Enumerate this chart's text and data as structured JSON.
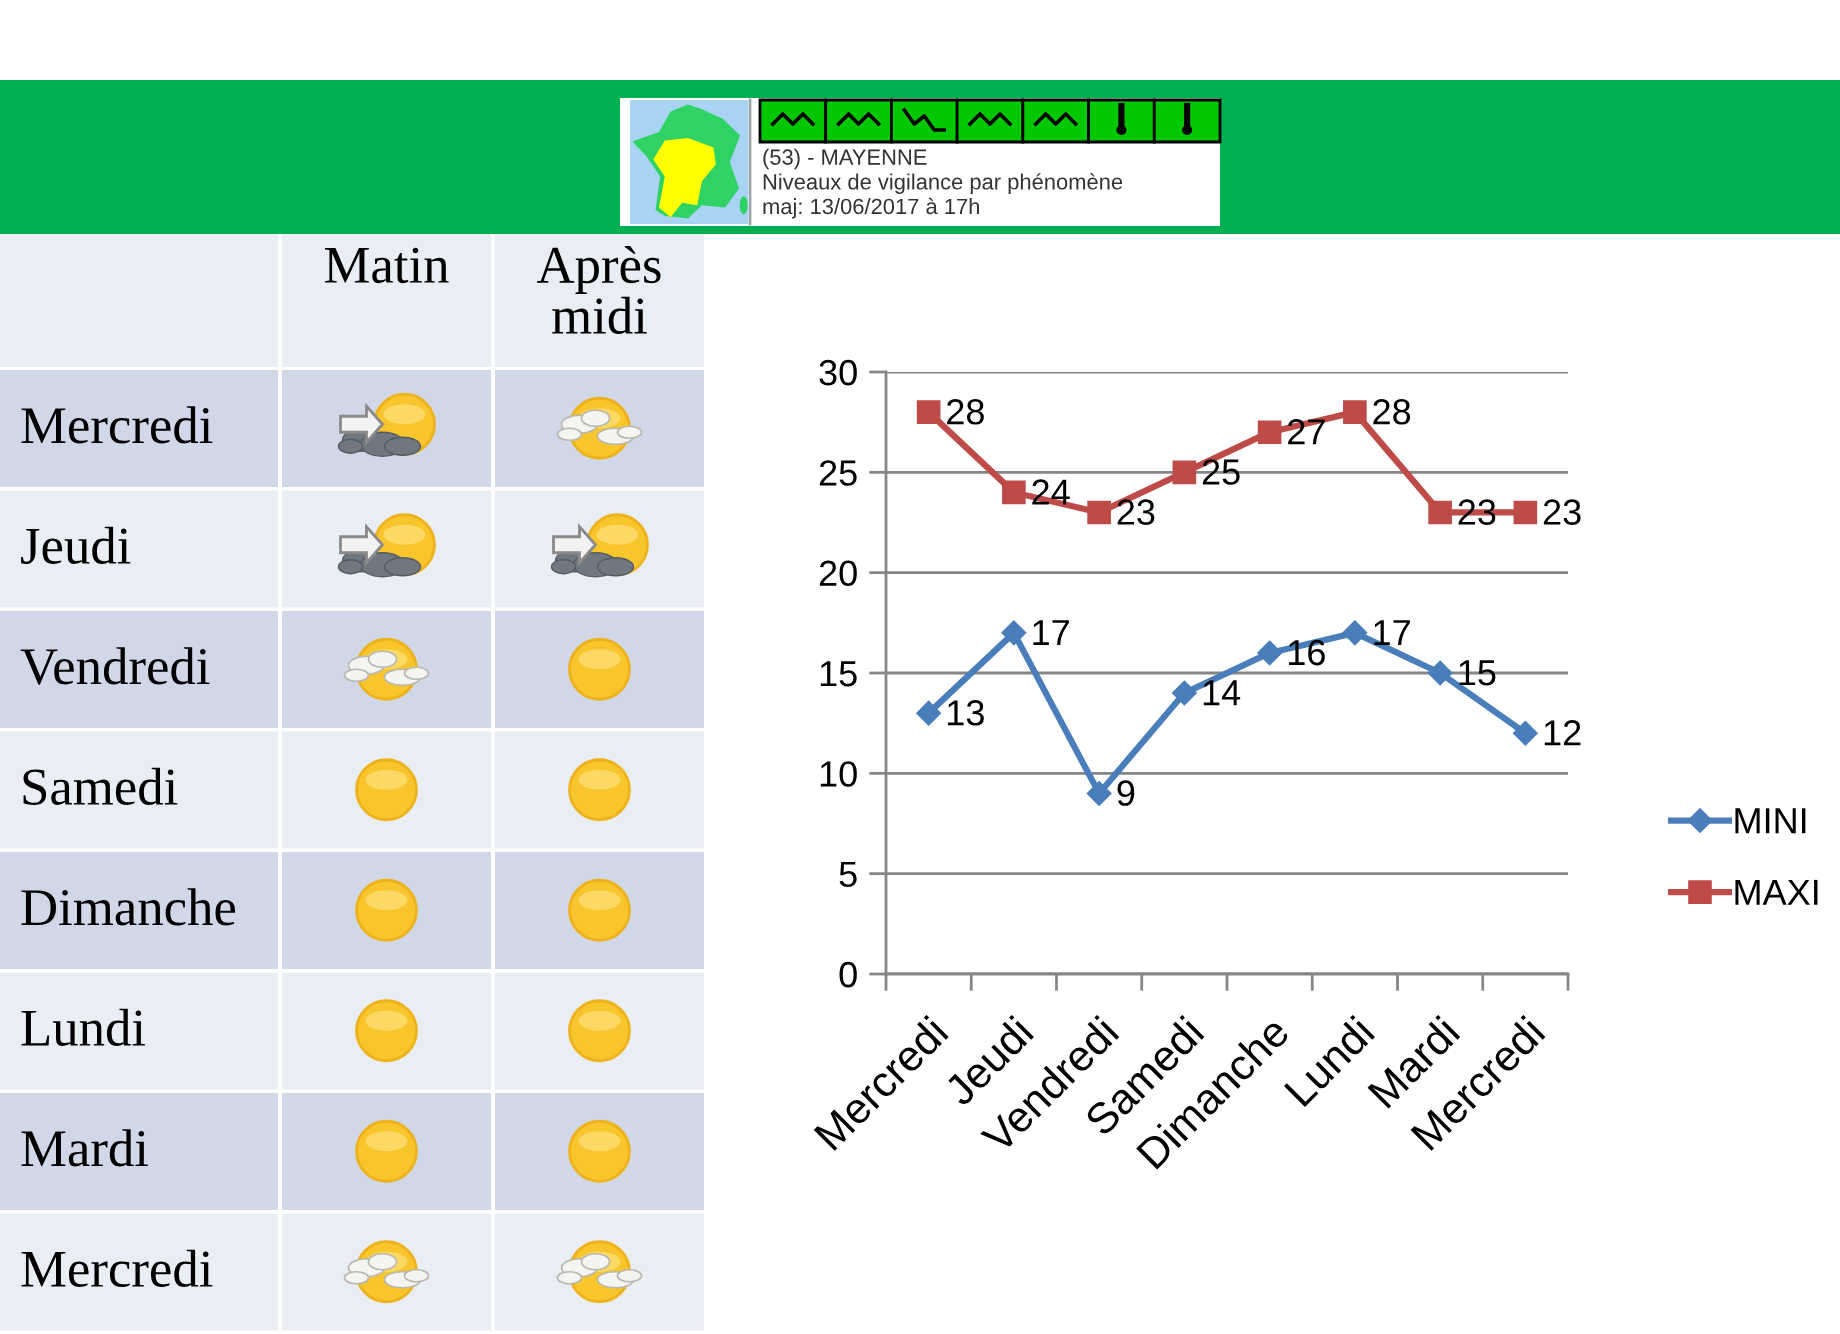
{
  "chart_data": [
    {
      "type": "other",
      "title": "(53) - MAYENNE",
      "subtitle": "Niveaux de vigilance par phénomène",
      "annotations": [
        "maj: 13/06/2017 à 17h"
      ]
    },
    {
      "type": "other",
      "categories": [
        "Matin",
        "Après\nmidi"
      ],
      "y_categories": [
        "Mercredi",
        "Jeudi",
        "Vendredi",
        "Samedi",
        "Dimanche",
        "Lundi",
        "Mardi",
        "Mercredi"
      ]
    },
    {
      "type": "line",
      "categories": [
        "Mercredi",
        "Jeudi",
        "Vendredi",
        "Samedi",
        "Dimanche",
        "Lundi",
        "Mardi",
        "Mercredi"
      ],
      "series": [
        {
          "name": "MINI",
          "color": "#4a7ebb",
          "marker": "diamond",
          "values": [
            13,
            17,
            9,
            14,
            16,
            17,
            15,
            12
          ]
        },
        {
          "name": "MAXI",
          "color": "#be4b48",
          "marker": "square",
          "values": [
            28,
            24,
            23,
            25,
            27,
            28,
            23,
            23
          ]
        }
      ],
      "ylim": [
        0,
        30
      ],
      "yticks": [
        0,
        5,
        10,
        15,
        20,
        25,
        30
      ],
      "grid": "y",
      "legend": "right",
      "data_labels": true
    }
  ]
}
